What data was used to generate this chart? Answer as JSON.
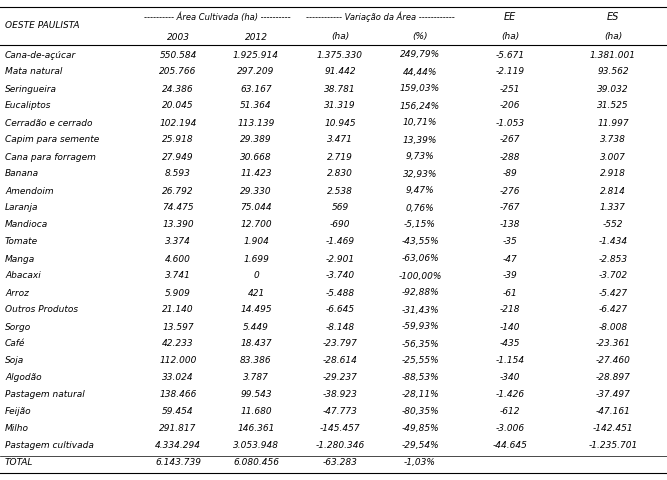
{
  "title_row1": "---------- Área Cultivada (ha) ----------",
  "title_row2": "------------ Variação da Área ------------",
  "title_ee": "EE",
  "title_es": "ES",
  "header_region": "OESTE PAULISTA",
  "subheader": [
    "2003",
    "2012",
    "(ha)",
    "(%)",
    "(ha)",
    "(ha)"
  ],
  "rows": [
    [
      "Cana-de-açúcar",
      "550.584",
      "1.925.914",
      "1.375.330",
      "249,79%",
      "-5.671",
      "1.381.001"
    ],
    [
      "Mata natural",
      "205.766",
      "297.209",
      "91.442",
      "44,44%",
      "-2.119",
      "93.562"
    ],
    [
      "Seringueira",
      "24.386",
      "63.167",
      "38.781",
      "159,03%",
      "-251",
      "39.032"
    ],
    [
      "Eucaliptos",
      "20.045",
      "51.364",
      "31.319",
      "156,24%",
      "-206",
      "31.525"
    ],
    [
      "Cerradão e cerrado",
      "102.194",
      "113.139",
      "10.945",
      "10,71%",
      "-1.053",
      "11.997"
    ],
    [
      "Capim para semente",
      "25.918",
      "29.389",
      "3.471",
      "13,39%",
      "-267",
      "3.738"
    ],
    [
      "Cana para forragem",
      "27.949",
      "30.668",
      "2.719",
      "9,73%",
      "-288",
      "3.007"
    ],
    [
      "Banana",
      "8.593",
      "11.423",
      "2.830",
      "32,93%",
      "-89",
      "2.918"
    ],
    [
      "Amendoim",
      "26.792",
      "29.330",
      "2.538",
      "9,47%",
      "-276",
      "2.814"
    ],
    [
      "Laranja",
      "74.475",
      "75.044",
      "569",
      "0,76%",
      "-767",
      "1.337"
    ],
    [
      "Mandioca",
      "13.390",
      "12.700",
      "-690",
      "-5,15%",
      "-138",
      "-552"
    ],
    [
      "Tomate",
      "3.374",
      "1.904",
      "-1.469",
      "-43,55%",
      "-35",
      "-1.434"
    ],
    [
      "Manga",
      "4.600",
      "1.699",
      "-2.901",
      "-63,06%",
      "-47",
      "-2.853"
    ],
    [
      "Abacaxi",
      "3.741",
      "0",
      "-3.740",
      "-100,00%",
      "-39",
      "-3.702"
    ],
    [
      "Arroz",
      "5.909",
      "421",
      "-5.488",
      "-92,88%",
      "-61",
      "-5.427"
    ],
    [
      "Outros Produtos",
      "21.140",
      "14.495",
      "-6.645",
      "-31,43%",
      "-218",
      "-6.427"
    ],
    [
      "Sorgo",
      "13.597",
      "5.449",
      "-8.148",
      "-59,93%",
      "-140",
      "-8.008"
    ],
    [
      "Café",
      "42.233",
      "18.437",
      "-23.797",
      "-56,35%",
      "-435",
      "-23.361"
    ],
    [
      "Soja",
      "112.000",
      "83.386",
      "-28.614",
      "-25,55%",
      "-1.154",
      "-27.460"
    ],
    [
      "Algodão",
      "33.024",
      "3.787",
      "-29.237",
      "-88,53%",
      "-340",
      "-28.897"
    ],
    [
      "Pastagem natural",
      "138.466",
      "99.543",
      "-38.923",
      "-28,11%",
      "-1.426",
      "-37.497"
    ],
    [
      "Feijão",
      "59.454",
      "11.680",
      "-47.773",
      "-80,35%",
      "-612",
      "-47.161"
    ],
    [
      "Milho",
      "291.817",
      "146.361",
      "-145.457",
      "-49,85%",
      "-3.006",
      "-142.451"
    ],
    [
      "Pastagem cultivada",
      "4.334.294",
      "3.053.948",
      "-1.280.346",
      "-29,54%",
      "-44.645",
      "-1.235.701"
    ],
    [
      "TOTAL",
      "6.143.739",
      "6.080.456",
      "-63.283",
      "-1,03%",
      "",
      ""
    ]
  ],
  "background_color": "#ffffff",
  "font_size": 6.5
}
